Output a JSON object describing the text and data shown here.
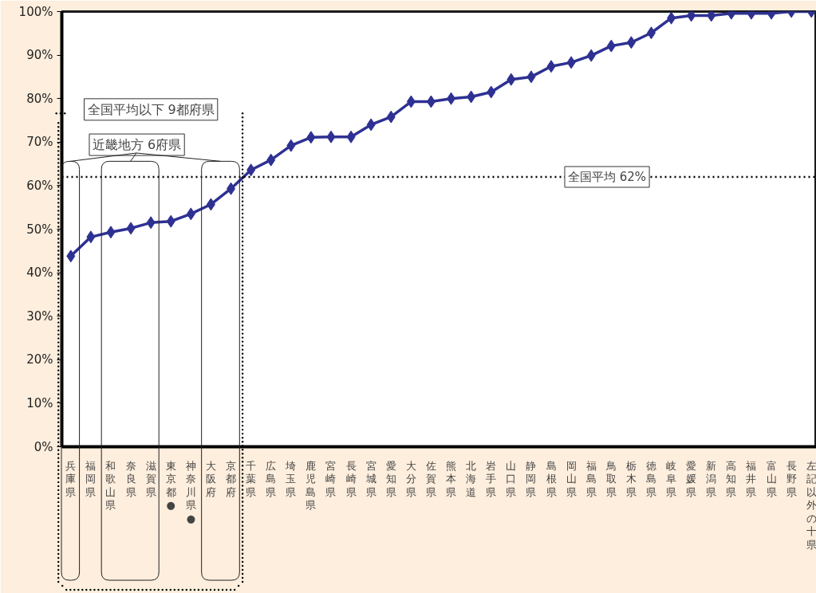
{
  "chart_data": {
    "type": "line",
    "categories": [
      "兵庫県",
      "福岡県",
      "和歌山県",
      "奈良県",
      "滋賀県",
      "東京都●",
      "神奈川県●",
      "大阪府",
      "京都府",
      "千葉県",
      "広島県",
      "埼玉県",
      "鹿児島県",
      "宮崎県",
      "長崎県",
      "宮城県",
      "愛知県",
      "大分県",
      "佐賀県",
      "熊本県",
      "北海道",
      "岩手県",
      "山口県",
      "静岡県",
      "島根県",
      "岡山県",
      "福島県",
      "鳥取県",
      "栃木県",
      "徳島県",
      "岐阜県",
      "愛媛県",
      "新潟県",
      "高知県",
      "福井県",
      "富山県",
      "長野県",
      "左記以外の十県"
    ],
    "series": [
      {
        "color": "#2e3192",
        "values": [
          43.8,
          48.2,
          49.3,
          50.2,
          51.5,
          51.8,
          53.5,
          55.7,
          59.3,
          63.6,
          65.9,
          69.2,
          71.1,
          71.2,
          71.2,
          74.0,
          75.8,
          79.3,
          79.3,
          80.0,
          80.4,
          81.5,
          84.4,
          85.0,
          87.4,
          88.3,
          89.9,
          92.1,
          92.9,
          95.1,
          98.5,
          99.1,
          99.1,
          99.6,
          99.6,
          99.6,
          100,
          100
        ]
      }
    ],
    "ylim": [
      0,
      100
    ],
    "yticks": [
      {
        "value": 0,
        "label": "0%"
      },
      {
        "value": 10,
        "label": "10%"
      },
      {
        "value": 20,
        "label": "20%"
      },
      {
        "value": 30,
        "label": "30%"
      },
      {
        "value": 40,
        "label": "40%"
      },
      {
        "value": 50,
        "label": "50%"
      },
      {
        "value": 60,
        "label": "60%"
      },
      {
        "value": 70,
        "label": "70%"
      },
      {
        "value": 80,
        "label": "80%"
      },
      {
        "value": 90,
        "label": "90%"
      },
      {
        "value": 100,
        "label": "100%"
      }
    ],
    "ref_lines": [
      {
        "axis": "y",
        "value": 62,
        "label": "全国平均 62%",
        "color": "#000000",
        "line_style": "dotted"
      }
    ],
    "annotations": [
      "全国平均以下 9都府県",
      "近畿地方 6府県"
    ],
    "marker": "diamond",
    "line_style": "solid",
    "grid": false
  }
}
